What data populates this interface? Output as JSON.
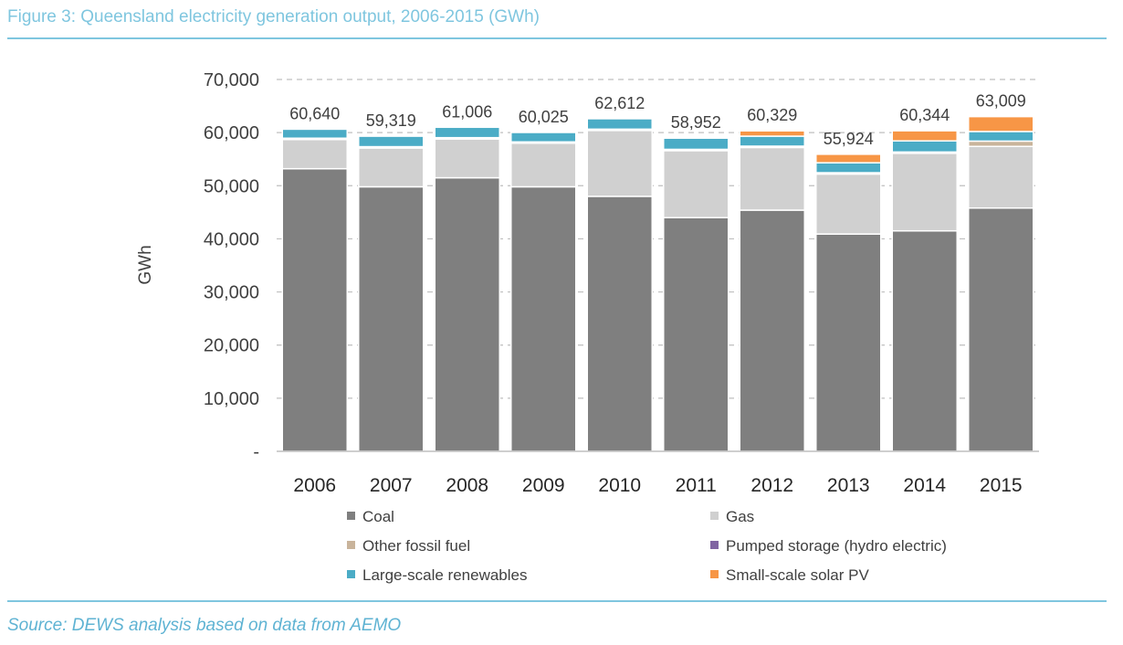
{
  "figure": {
    "title": "Figure 3: Queensland electricity generation output, 2006-2015 (GWh)",
    "source": "Source: DEWS analysis based on data from AEMO"
  },
  "chart_data": {
    "type": "bar",
    "stacked": true,
    "title": "Figure 3: Queensland electricity generation output, 2006-2015 (GWh)",
    "xlabel": "",
    "ylabel": "GWh",
    "ylim": [
      0,
      70000
    ],
    "yticks": [
      "-",
      "10,000",
      "20,000",
      "30,000",
      "40,000",
      "50,000",
      "60,000",
      "70,000"
    ],
    "grid": true,
    "legend_position": "bottom",
    "categories": [
      "2006",
      "2007",
      "2008",
      "2009",
      "2010",
      "2011",
      "2012",
      "2013",
      "2014",
      "2015"
    ],
    "series": [
      {
        "name": "Coal",
        "color": "#7f7f7f",
        "values": [
          53200,
          49800,
          51500,
          49800,
          48000,
          44000,
          45400,
          40900,
          41500,
          45800
        ]
      },
      {
        "name": "Gas",
        "color": "#d0d0d0",
        "values": [
          5500,
          7300,
          7300,
          8200,
          12400,
          12600,
          11800,
          11300,
          14600,
          11600
        ]
      },
      {
        "name": "Other fossil fuel",
        "color": "#c9b49b",
        "values": [
          250,
          250,
          250,
          250,
          250,
          250,
          250,
          250,
          250,
          1000
        ]
      },
      {
        "name": "Pumped storage (hydro electric)",
        "color": "#8064a2",
        "values": [
          0,
          0,
          0,
          0,
          0,
          0,
          0,
          0,
          0,
          0
        ]
      },
      {
        "name": "Large-scale renewables",
        "color": "#4bacc6",
        "values": [
          1690,
          1969,
          1956,
          1775,
          1962,
          2102,
          1879,
          1874,
          2094,
          1809
        ]
      },
      {
        "name": "Small-scale solar PV",
        "color": "#f79646",
        "values": [
          0,
          0,
          0,
          0,
          0,
          0,
          1000,
          1600,
          1900,
          2800
        ]
      }
    ],
    "totals": [
      60640,
      59319,
      61006,
      60025,
      62612,
      58952,
      60329,
      55924,
      60344,
      63009
    ],
    "total_labels": [
      "60,640",
      "59,319",
      "61,006",
      "60,025",
      "62,612",
      "58,952",
      "60,329",
      "55,924",
      "60,344",
      "63,009"
    ]
  }
}
